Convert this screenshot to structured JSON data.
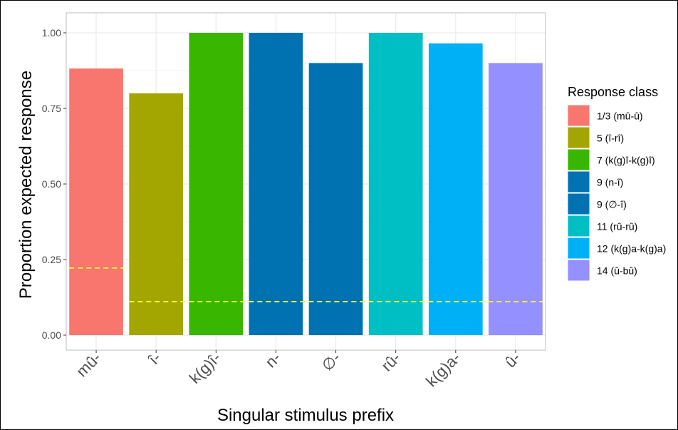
{
  "chart_data": {
    "type": "bar",
    "title": "",
    "xlabel": "Singular stimulus prefix",
    "ylabel": "Proportion expected response",
    "ylim": [
      0,
      1.0
    ],
    "yticks": [
      "0.00",
      "0.25",
      "0.50",
      "0.75",
      "1.00"
    ],
    "ytick_values": [
      0,
      0.25,
      0.5,
      0.75,
      1.0
    ],
    "grid": true,
    "legend_position": "right",
    "legend_title": "Response class",
    "categories": [
      "mû-",
      "î-",
      "k(g)î-",
      "n-",
      "∅-",
      "rû-",
      "k(g)a-",
      "û-"
    ],
    "values": [
      0.882,
      0.8,
      1.0,
      1.0,
      0.9,
      1.0,
      0.965,
      0.9
    ],
    "classes": [
      "1/3 (mû-û)",
      "5 (î-rî)",
      "7 (k(g)î-k(g)î)",
      "9 (n-î)",
      "9 (∅-î)",
      "11 (rû-rû)",
      "12 (k(g)a-k(g)a)",
      "14 (û-bû)"
    ],
    "colors": [
      "#F8766D",
      "#A3A500",
      "#39B600",
      "#0072B2",
      "#0072B2",
      "#00BFC4",
      "#00B0F6",
      "#9590FF"
    ],
    "chance_line": {
      "color": "#FFFF33",
      "segments": [
        {
          "from": 0,
          "to": 0,
          "value": 0.222
        },
        {
          "from": 1,
          "to": 7,
          "value": 0.111
        }
      ]
    }
  }
}
